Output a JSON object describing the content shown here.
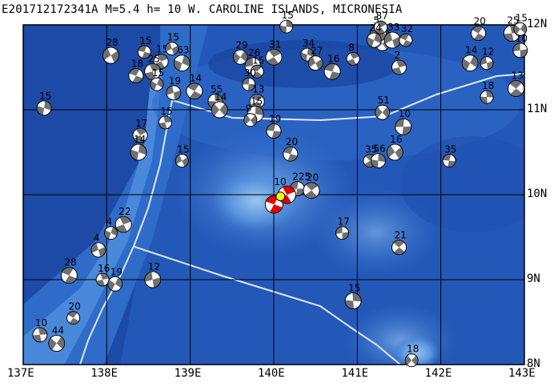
{
  "title": "E201712172341A M=5.4 h= 10 W. CAROLINE ISLANDS, MICRONESIA",
  "map": {
    "lon_range": [
      137,
      143
    ],
    "lat_range": [
      8,
      12
    ],
    "lon_ticks": [
      "137E",
      "138E",
      "139E",
      "140E",
      "141E",
      "142E",
      "143E"
    ],
    "lat_ticks": [
      "12N",
      "11N",
      "10N",
      "9N",
      "8N"
    ],
    "colors": {
      "ocean_deep": "#1a4fae",
      "ocean_mid": "#3f7fd6",
      "ocean_shallow": "#9cc4ef",
      "grid": "#000000",
      "plate_boundary": "#dde8f8",
      "mechanism_fill": "#707070",
      "target_mechanism_fill": "#e60000",
      "epicenter": "#ffff00"
    },
    "main_event": {
      "lon": 140.08,
      "lat": 9.98,
      "depth_label": "10"
    },
    "mechanisms": [
      {
        "label": "15",
        "lon": 140.15,
        "lat": 11.98
      },
      {
        "label": "15",
        "lon": 141.3,
        "lat": 11.78
      },
      {
        "label": "5",
        "lon": 141.25,
        "lat": 11.9
      },
      {
        "label": "87",
        "lon": 141.28,
        "lat": 11.97
      },
      {
        "label": "15",
        "lon": 137.25,
        "lat": 11.02
      },
      {
        "label": "28",
        "lon": 138.05,
        "lat": 11.64
      },
      {
        "label": "15",
        "lon": 138.45,
        "lat": 11.68
      },
      {
        "label": "15",
        "lon": 138.65,
        "lat": 11.57
      },
      {
        "label": "63",
        "lon": 138.9,
        "lat": 11.55
      },
      {
        "label": "15",
        "lon": 138.78,
        "lat": 11.72
      },
      {
        "label": "18",
        "lon": 138.35,
        "lat": 11.4
      },
      {
        "label": "25",
        "lon": 138.55,
        "lat": 11.45
      },
      {
        "label": "15",
        "lon": 138.6,
        "lat": 11.3
      },
      {
        "label": "19",
        "lon": 138.8,
        "lat": 11.2
      },
      {
        "label": "14",
        "lon": 139.05,
        "lat": 11.22
      },
      {
        "label": "15",
        "lon": 138.7,
        "lat": 10.85
      },
      {
        "label": "29",
        "lon": 139.6,
        "lat": 11.62
      },
      {
        "label": "26",
        "lon": 139.75,
        "lat": 11.52
      },
      {
        "label": "15",
        "lon": 139.8,
        "lat": 11.45
      },
      {
        "label": "55",
        "lon": 139.3,
        "lat": 11.1
      },
      {
        "label": "14",
        "lon": 139.35,
        "lat": 11.0
      },
      {
        "label": "30",
        "lon": 139.7,
        "lat": 11.3
      },
      {
        "label": "13",
        "lon": 139.8,
        "lat": 11.1
      },
      {
        "label": "15",
        "lon": 139.78,
        "lat": 10.95
      },
      {
        "label": "9",
        "lon": 139.72,
        "lat": 10.88
      },
      {
        "label": "19",
        "lon": 140.0,
        "lat": 10.75
      },
      {
        "label": "31",
        "lon": 140.0,
        "lat": 11.62
      },
      {
        "label": "34",
        "lon": 140.4,
        "lat": 11.65
      },
      {
        "label": "27",
        "lon": 140.5,
        "lat": 11.55
      },
      {
        "label": "16",
        "lon": 140.7,
        "lat": 11.45
      },
      {
        "label": "8",
        "lon": 140.95,
        "lat": 11.6
      },
      {
        "label": "24",
        "lon": 141.2,
        "lat": 11.82
      },
      {
        "label": "33",
        "lon": 141.42,
        "lat": 11.82
      },
      {
        "label": "32",
        "lon": 141.58,
        "lat": 11.82
      },
      {
        "label": "2",
        "lon": 141.5,
        "lat": 11.5
      },
      {
        "label": "14",
        "lon": 142.35,
        "lat": 11.55
      },
      {
        "label": "12",
        "lon": 142.55,
        "lat": 11.55
      },
      {
        "label": "20",
        "lon": 142.45,
        "lat": 11.9
      },
      {
        "label": "25",
        "lon": 142.85,
        "lat": 11.9
      },
      {
        "label": "15",
        "lon": 142.95,
        "lat": 11.95
      },
      {
        "label": "10",
        "lon": 142.95,
        "lat": 11.7
      },
      {
        "label": "13",
        "lon": 142.9,
        "lat": 11.25
      },
      {
        "label": "18",
        "lon": 142.55,
        "lat": 11.15
      },
      {
        "label": "51",
        "lon": 141.3,
        "lat": 10.97
      },
      {
        "label": "10",
        "lon": 141.55,
        "lat": 10.8
      },
      {
        "label": "35",
        "lon": 141.15,
        "lat": 10.4
      },
      {
        "label": "56",
        "lon": 141.25,
        "lat": 10.4
      },
      {
        "label": "16",
        "lon": 141.45,
        "lat": 10.5
      },
      {
        "label": "35",
        "lon": 142.1,
        "lat": 10.4
      },
      {
        "label": "17",
        "lon": 138.4,
        "lat": 10.7
      },
      {
        "label": "14",
        "lon": 138.38,
        "lat": 10.5
      },
      {
        "label": "15",
        "lon": 138.9,
        "lat": 10.4
      },
      {
        "label": "20",
        "lon": 140.2,
        "lat": 10.48
      },
      {
        "label": "22",
        "lon": 138.2,
        "lat": 9.65
      },
      {
        "label": "4",
        "lon": 138.05,
        "lat": 9.55
      },
      {
        "label": "4",
        "lon": 137.9,
        "lat": 9.35
      },
      {
        "label": "28",
        "lon": 137.55,
        "lat": 9.05
      },
      {
        "label": "16",
        "lon": 137.95,
        "lat": 9.0
      },
      {
        "label": "19",
        "lon": 138.1,
        "lat": 8.95
      },
      {
        "label": "12",
        "lon": 138.55,
        "lat": 9.0
      },
      {
        "label": "20",
        "lon": 137.6,
        "lat": 8.55
      },
      {
        "label": "10",
        "lon": 137.2,
        "lat": 8.35
      },
      {
        "label": "44",
        "lon": 137.4,
        "lat": 8.25
      },
      {
        "label": "17",
        "lon": 140.82,
        "lat": 9.55
      },
      {
        "label": "21",
        "lon": 141.5,
        "lat": 9.38
      },
      {
        "label": "15",
        "lon": 140.95,
        "lat": 8.75
      },
      {
        "label": "18",
        "lon": 141.65,
        "lat": 8.05
      },
      {
        "label": "225",
        "lon": 140.28,
        "lat": 10.07
      },
      {
        "label": "20",
        "lon": 140.45,
        "lat": 10.05
      }
    ]
  }
}
